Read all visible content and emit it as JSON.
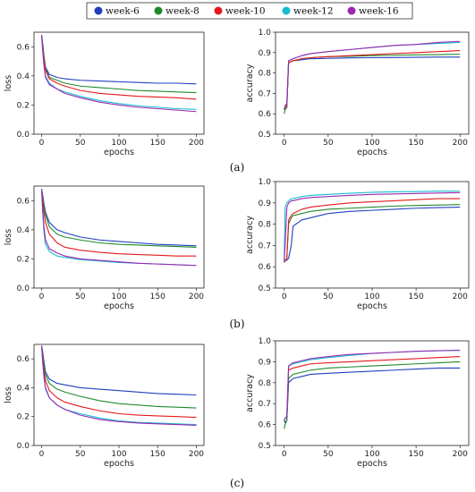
{
  "legend": [
    {
      "name": "week-6",
      "color": "#1f3fbf"
    },
    {
      "name": "week-8",
      "color": "#1f8a2a"
    },
    {
      "name": "week-10",
      "color": "#e31a1c"
    },
    {
      "name": "week-12",
      "color": "#17becf"
    },
    {
      "name": "week-16",
      "color": "#9b27b0"
    }
  ],
  "captions": [
    "(a)",
    "(b)",
    "(c)"
  ],
  "chart_data": [
    {
      "type": "line",
      "panel": "(a)",
      "metric": "loss",
      "xlabel": "epochs",
      "ylabel": "loss",
      "xlim": [
        0,
        200
      ],
      "ylim": [
        0.0,
        0.7
      ],
      "xticks": [
        "0",
        "50",
        "100",
        "150",
        "200"
      ],
      "yticks": [
        "0.0",
        "0.2",
        "0.4",
        "0.6"
      ],
      "x": [
        0,
        1,
        3,
        5,
        10,
        20,
        30,
        50,
        75,
        100,
        125,
        150,
        175,
        200
      ],
      "series": [
        {
          "name": "week-6",
          "color": "#1f3fbf",
          "values": [
            0.68,
            0.64,
            0.54,
            0.46,
            0.41,
            0.39,
            0.38,
            0.37,
            0.365,
            0.36,
            0.355,
            0.35,
            0.35,
            0.345
          ]
        },
        {
          "name": "week-8",
          "color": "#1f8a2a",
          "values": [
            0.68,
            0.63,
            0.53,
            0.45,
            0.39,
            0.37,
            0.35,
            0.33,
            0.32,
            0.31,
            0.3,
            0.295,
            0.29,
            0.285
          ]
        },
        {
          "name": "week-10",
          "color": "#e31a1c",
          "values": [
            0.68,
            0.62,
            0.52,
            0.44,
            0.38,
            0.35,
            0.33,
            0.3,
            0.28,
            0.27,
            0.26,
            0.255,
            0.25,
            0.24
          ]
        },
        {
          "name": "week-12",
          "color": "#17becf",
          "values": [
            0.68,
            0.6,
            0.48,
            0.4,
            0.35,
            0.31,
            0.29,
            0.26,
            0.23,
            0.21,
            0.195,
            0.185,
            0.175,
            0.17
          ]
        },
        {
          "name": "week-16",
          "color": "#9b27b0",
          "values": [
            0.68,
            0.6,
            0.47,
            0.39,
            0.34,
            0.31,
            0.28,
            0.25,
            0.22,
            0.2,
            0.185,
            0.175,
            0.165,
            0.155
          ]
        }
      ]
    },
    {
      "type": "line",
      "panel": "(a)",
      "metric": "accuracy",
      "xlabel": "epochs",
      "ylabel": "accuracy",
      "xlim": [
        0,
        200
      ],
      "ylim": [
        0.5,
        1.0
      ],
      "xticks": [
        "0",
        "50",
        "100",
        "150",
        "200"
      ],
      "yticks": [
        "0.5",
        "0.6",
        "0.7",
        "0.8",
        "0.9",
        "1.0"
      ],
      "x": [
        0,
        1,
        3,
        5,
        10,
        20,
        30,
        50,
        75,
        100,
        125,
        150,
        175,
        200
      ],
      "series": [
        {
          "name": "week-6",
          "color": "#1f3fbf",
          "values": [
            0.62,
            0.63,
            0.64,
            0.85,
            0.86,
            0.865,
            0.87,
            0.872,
            0.874,
            0.875,
            0.876,
            0.877,
            0.878,
            0.878
          ]
        },
        {
          "name": "week-8",
          "color": "#1f8a2a",
          "values": [
            0.6,
            0.62,
            0.63,
            0.85,
            0.86,
            0.87,
            0.875,
            0.88,
            0.882,
            0.885,
            0.887,
            0.889,
            0.89,
            0.892
          ]
        },
        {
          "name": "week-10",
          "color": "#e31a1c",
          "values": [
            0.62,
            0.63,
            0.64,
            0.85,
            0.86,
            0.87,
            0.875,
            0.88,
            0.885,
            0.89,
            0.895,
            0.9,
            0.905,
            0.91
          ]
        },
        {
          "name": "week-12",
          "color": "#17becf",
          "values": [
            0.62,
            0.64,
            0.65,
            0.86,
            0.87,
            0.885,
            0.895,
            0.905,
            0.915,
            0.925,
            0.935,
            0.94,
            0.945,
            0.95
          ]
        },
        {
          "name": "week-16",
          "color": "#9b27b0",
          "values": [
            0.62,
            0.64,
            0.65,
            0.86,
            0.87,
            0.885,
            0.895,
            0.905,
            0.915,
            0.925,
            0.935,
            0.94,
            0.95,
            0.955
          ]
        }
      ]
    },
    {
      "type": "line",
      "panel": "(b)",
      "metric": "loss",
      "xlabel": "epochs",
      "ylabel": "loss",
      "xlim": [
        0,
        200
      ],
      "ylim": [
        0.0,
        0.7
      ],
      "xticks": [
        "0",
        "50",
        "100",
        "150",
        "200"
      ],
      "yticks": [
        "0.0",
        "0.2",
        "0.4",
        "0.6"
      ],
      "x": [
        0,
        1,
        3,
        5,
        10,
        20,
        30,
        50,
        75,
        100,
        125,
        150,
        175,
        200
      ],
      "series": [
        {
          "name": "week-6",
          "color": "#1f3fbf",
          "values": [
            0.68,
            0.65,
            0.58,
            0.52,
            0.45,
            0.4,
            0.38,
            0.35,
            0.33,
            0.32,
            0.31,
            0.3,
            0.295,
            0.29
          ]
        },
        {
          "name": "week-8",
          "color": "#1f8a2a",
          "values": [
            0.68,
            0.64,
            0.56,
            0.5,
            0.42,
            0.37,
            0.35,
            0.33,
            0.31,
            0.3,
            0.295,
            0.29,
            0.285,
            0.28
          ]
        },
        {
          "name": "week-10",
          "color": "#e31a1c",
          "values": [
            0.68,
            0.62,
            0.52,
            0.45,
            0.37,
            0.31,
            0.28,
            0.26,
            0.245,
            0.235,
            0.23,
            0.225,
            0.22,
            0.22
          ]
        },
        {
          "name": "week-12",
          "color": "#17becf",
          "values": [
            0.68,
            0.55,
            0.38,
            0.3,
            0.25,
            0.22,
            0.21,
            0.195,
            0.185,
            0.175,
            0.17,
            0.165,
            0.16,
            0.155
          ]
        },
        {
          "name": "week-16",
          "color": "#9b27b0",
          "values": [
            0.68,
            0.57,
            0.42,
            0.33,
            0.27,
            0.24,
            0.22,
            0.2,
            0.19,
            0.18,
            0.17,
            0.165,
            0.16,
            0.155
          ]
        }
      ]
    },
    {
      "type": "line",
      "panel": "(b)",
      "metric": "accuracy",
      "xlabel": "epochs",
      "ylabel": "accuracy",
      "xlim": [
        0,
        200
      ],
      "ylim": [
        0.5,
        1.0
      ],
      "xticks": [
        "0",
        "50",
        "100",
        "150",
        "200"
      ],
      "yticks": [
        "0.5",
        "0.6",
        "0.7",
        "0.8",
        "0.9",
        "1.0"
      ],
      "x": [
        0,
        1,
        3,
        5,
        8,
        10,
        20,
        30,
        50,
        75,
        100,
        125,
        150,
        175,
        200
      ],
      "series": [
        {
          "name": "week-6",
          "color": "#1f3fbf",
          "values": [
            0.62,
            0.63,
            0.63,
            0.64,
            0.7,
            0.79,
            0.82,
            0.83,
            0.85,
            0.86,
            0.865,
            0.87,
            0.875,
            0.878,
            0.88
          ]
        },
        {
          "name": "week-8",
          "color": "#1f8a2a",
          "values": [
            0.62,
            0.63,
            0.64,
            0.8,
            0.83,
            0.84,
            0.85,
            0.86,
            0.87,
            0.875,
            0.88,
            0.885,
            0.888,
            0.89,
            0.892
          ]
        },
        {
          "name": "week-10",
          "color": "#e31a1c",
          "values": [
            0.62,
            0.63,
            0.64,
            0.82,
            0.84,
            0.85,
            0.87,
            0.88,
            0.89,
            0.9,
            0.905,
            0.91,
            0.915,
            0.92,
            0.92
          ]
        },
        {
          "name": "week-12",
          "color": "#17becf",
          "values": [
            0.63,
            0.88,
            0.9,
            0.91,
            0.92,
            0.92,
            0.93,
            0.935,
            0.94,
            0.945,
            0.95,
            0.952,
            0.953,
            0.955,
            0.955
          ]
        },
        {
          "name": "week-16",
          "color": "#9b27b0",
          "values": [
            0.62,
            0.7,
            0.88,
            0.9,
            0.91,
            0.91,
            0.92,
            0.925,
            0.93,
            0.935,
            0.94,
            0.942,
            0.944,
            0.946,
            0.948
          ]
        }
      ]
    },
    {
      "type": "line",
      "panel": "(c)",
      "metric": "loss",
      "xlabel": "epochs",
      "ylabel": "loss",
      "xlim": [
        0,
        200
      ],
      "ylim": [
        0.0,
        0.7
      ],
      "xticks": [
        "0",
        "50",
        "100",
        "150",
        "200"
      ],
      "yticks": [
        "0.0",
        "0.2",
        "0.4",
        "0.6"
      ],
      "x": [
        0,
        1,
        3,
        5,
        10,
        20,
        30,
        50,
        75,
        100,
        125,
        150,
        175,
        200
      ],
      "series": [
        {
          "name": "week-6",
          "color": "#1f3fbf",
          "values": [
            0.69,
            0.66,
            0.58,
            0.51,
            0.46,
            0.43,
            0.42,
            0.4,
            0.39,
            0.38,
            0.37,
            0.36,
            0.355,
            0.35
          ]
        },
        {
          "name": "week-8",
          "color": "#1f8a2a",
          "values": [
            0.69,
            0.65,
            0.56,
            0.49,
            0.43,
            0.39,
            0.37,
            0.34,
            0.31,
            0.29,
            0.28,
            0.27,
            0.265,
            0.26
          ]
        },
        {
          "name": "week-10",
          "color": "#e31a1c",
          "values": [
            0.69,
            0.63,
            0.52,
            0.45,
            0.38,
            0.33,
            0.3,
            0.27,
            0.24,
            0.22,
            0.21,
            0.205,
            0.2,
            0.195
          ]
        },
        {
          "name": "week-12",
          "color": "#17becf",
          "values": [
            0.69,
            0.6,
            0.47,
            0.39,
            0.33,
            0.28,
            0.25,
            0.22,
            0.19,
            0.17,
            0.16,
            0.155,
            0.15,
            0.145
          ]
        },
        {
          "name": "week-16",
          "color": "#9b27b0",
          "values": [
            0.69,
            0.61,
            0.48,
            0.4,
            0.33,
            0.28,
            0.25,
            0.21,
            0.18,
            0.165,
            0.155,
            0.15,
            0.145,
            0.14
          ]
        }
      ]
    },
    {
      "type": "line",
      "panel": "(c)",
      "metric": "accuracy",
      "xlabel": "epochs",
      "ylabel": "accuracy",
      "xlim": [
        0,
        200
      ],
      "ylim": [
        0.5,
        1.0
      ],
      "xticks": [
        "0",
        "50",
        "100",
        "150",
        "200"
      ],
      "yticks": [
        "0.5",
        "0.6",
        "0.7",
        "0.8",
        "0.9",
        "1.0"
      ],
      "x": [
        0,
        1,
        3,
        5,
        10,
        20,
        30,
        50,
        75,
        100,
        125,
        150,
        175,
        200
      ],
      "series": [
        {
          "name": "week-6",
          "color": "#1f3fbf",
          "values": [
            0.62,
            0.61,
            0.62,
            0.8,
            0.82,
            0.83,
            0.84,
            0.845,
            0.85,
            0.855,
            0.86,
            0.865,
            0.87,
            0.87
          ]
        },
        {
          "name": "week-8",
          "color": "#1f8a2a",
          "values": [
            0.58,
            0.6,
            0.62,
            0.82,
            0.84,
            0.85,
            0.86,
            0.87,
            0.875,
            0.88,
            0.885,
            0.89,
            0.895,
            0.9
          ]
        },
        {
          "name": "week-10",
          "color": "#e31a1c",
          "values": [
            0.62,
            0.63,
            0.64,
            0.86,
            0.87,
            0.88,
            0.89,
            0.895,
            0.9,
            0.905,
            0.91,
            0.915,
            0.92,
            0.925
          ]
        },
        {
          "name": "week-12",
          "color": "#17becf",
          "values": [
            0.62,
            0.63,
            0.64,
            0.88,
            0.89,
            0.9,
            0.91,
            0.92,
            0.93,
            0.94,
            0.945,
            0.95,
            0.952,
            0.955
          ]
        },
        {
          "name": "week-16",
          "color": "#9b27b0",
          "values": [
            0.62,
            0.63,
            0.64,
            0.88,
            0.895,
            0.905,
            0.915,
            0.925,
            0.935,
            0.94,
            0.945,
            0.95,
            0.953,
            0.955
          ]
        }
      ]
    }
  ]
}
